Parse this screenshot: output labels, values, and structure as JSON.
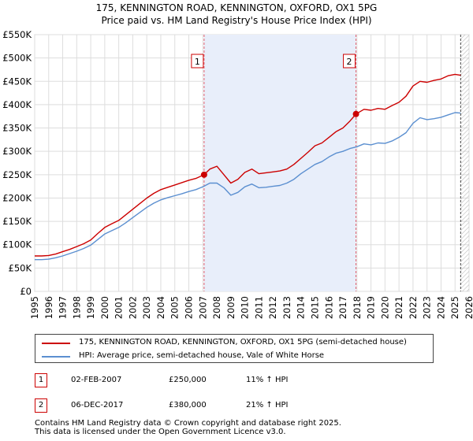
{
  "chart_data": {
    "type": "line",
    "title": "175, KENNINGTON ROAD, KENNINGTON, OXFORD, OX1 5PG",
    "subtitle": "Price paid vs. HM Land Registry's House Price Index (HPI)",
    "xlim": [
      1995,
      2026
    ],
    "ylim": [
      0,
      550000
    ],
    "x_ticks": [
      "1995",
      "1996",
      "1997",
      "1998",
      "1999",
      "2000",
      "2001",
      "2002",
      "2003",
      "2004",
      "2005",
      "2006",
      "2007",
      "2008",
      "2009",
      "2010",
      "2011",
      "2012",
      "2013",
      "2014",
      "2015",
      "2016",
      "2017",
      "2018",
      "2019",
      "2020",
      "2021",
      "2022",
      "2023",
      "2024",
      "2025",
      "2026"
    ],
    "y_ticks": [
      {
        "value": 0,
        "label": "£0"
      },
      {
        "value": 50000,
        "label": "£50K"
      },
      {
        "value": 100000,
        "label": "£100K"
      },
      {
        "value": 150000,
        "label": "£150K"
      },
      {
        "value": 200000,
        "label": "£200K"
      },
      {
        "value": 250000,
        "label": "£250K"
      },
      {
        "value": 300000,
        "label": "£300K"
      },
      {
        "value": 350000,
        "label": "£350K"
      },
      {
        "value": 400000,
        "label": "£400K"
      },
      {
        "value": 450000,
        "label": "£450K"
      },
      {
        "value": 500000,
        "label": "£500K"
      },
      {
        "value": 550000,
        "label": "£550K"
      }
    ],
    "grid": true,
    "series": [
      {
        "name": "175, KENNINGTON ROAD, KENNINGTON, OXFORD, OX1 5PG (semi-detached house)",
        "color": "#cc0000",
        "x": [
          1995,
          1995.5,
          1996,
          1996.5,
          1997,
          1997.5,
          1998,
          1998.5,
          1999,
          1999.5,
          2000,
          2000.5,
          2001,
          2001.5,
          2002,
          2002.5,
          2003,
          2003.5,
          2004,
          2004.5,
          2005,
          2005.5,
          2006,
          2006.5,
          2007.09,
          2007.5,
          2008,
          2008.5,
          2009,
          2009.5,
          2010,
          2010.5,
          2011,
          2011.5,
          2012,
          2012.5,
          2013,
          2013.5,
          2014,
          2014.5,
          2015,
          2015.5,
          2016,
          2016.5,
          2017,
          2017.5,
          2017.93,
          2018.5,
          2019,
          2019.5,
          2020,
          2020.5,
          2021,
          2021.5,
          2022,
          2022.5,
          2023,
          2023.5,
          2024,
          2024.5,
          2025,
          2025.4
        ],
        "y": [
          76000,
          76000,
          77000,
          80000,
          85000,
          90000,
          96000,
          102000,
          110000,
          124000,
          137000,
          145000,
          152000,
          164000,
          176000,
          188000,
          200000,
          210000,
          218000,
          223000,
          228000,
          233000,
          238000,
          242000,
          250000,
          262000,
          268000,
          250000,
          232000,
          240000,
          255000,
          262000,
          252000,
          254000,
          256000,
          258000,
          262000,
          272000,
          285000,
          298000,
          312000,
          318000,
          330000,
          342000,
          350000,
          365000,
          380000,
          390000,
          388000,
          392000,
          390000,
          398000,
          405000,
          418000,
          440000,
          450000,
          448000,
          452000,
          455000,
          462000,
          465000,
          463000
        ]
      },
      {
        "name": "HPI: Average price, semi-detached house, Vale of White Horse",
        "color": "#5b8fd0",
        "x": [
          1995,
          1995.5,
          1996,
          1996.5,
          1997,
          1997.5,
          1998,
          1998.5,
          1999,
          1999.5,
          2000,
          2000.5,
          2001,
          2001.5,
          2002,
          2002.5,
          2003,
          2003.5,
          2004,
          2004.5,
          2005,
          2005.5,
          2006,
          2006.5,
          2007,
          2007.5,
          2008,
          2008.5,
          2009,
          2009.5,
          2010,
          2010.5,
          2011,
          2011.5,
          2012,
          2012.5,
          2013,
          2013.5,
          2014,
          2014.5,
          2015,
          2015.5,
          2016,
          2016.5,
          2017,
          2017.5,
          2018,
          2018.5,
          2019,
          2019.5,
          2020,
          2020.5,
          2021,
          2021.5,
          2022,
          2022.5,
          2023,
          2023.5,
          2024,
          2024.5,
          2025,
          2025.4
        ],
        "y": [
          68000,
          68000,
          69000,
          72000,
          76000,
          81000,
          86000,
          92000,
          99000,
          111000,
          123000,
          130000,
          137000,
          147000,
          158000,
          169000,
          180000,
          189000,
          196000,
          201000,
          205000,
          209000,
          214000,
          218000,
          224000,
          232000,
          232000,
          222000,
          206000,
          212000,
          224000,
          230000,
          222000,
          223000,
          225000,
          227000,
          232000,
          240000,
          252000,
          262000,
          272000,
          278000,
          288000,
          296000,
          300000,
          306000,
          310000,
          316000,
          314000,
          318000,
          317000,
          322000,
          330000,
          340000,
          360000,
          372000,
          368000,
          370000,
          373000,
          378000,
          383000,
          382000
        ]
      }
    ],
    "annotations": [
      {
        "label": "1",
        "x": 2007.09
      },
      {
        "label": "2",
        "x": 2017.93
      }
    ],
    "shaded_range": [
      2007.09,
      2017.93
    ],
    "sale_points": [
      {
        "x": 2007.09,
        "y": 250000
      },
      {
        "x": 2017.93,
        "y": 380000
      }
    ],
    "data_end_x": 2025.4
  },
  "legend": {
    "items": [
      {
        "label": "175, KENNINGTON ROAD, KENNINGTON, OXFORD, OX1 5PG (semi-detached house)",
        "color": "#cc0000"
      },
      {
        "label": "HPI: Average price, semi-detached house, Vale of White Horse",
        "color": "#5b8fd0"
      }
    ]
  },
  "sales": [
    {
      "num": "1",
      "date": "02-FEB-2007",
      "price": "£250,000",
      "hpi": "11% ↑ HPI"
    },
    {
      "num": "2",
      "date": "06-DEC-2017",
      "price": "£380,000",
      "hpi": "21% ↑ HPI"
    }
  ],
  "footer": {
    "line1": "Contains HM Land Registry data © Crown copyright and database right 2025.",
    "line2": "This data is licensed under the Open Government Licence v3.0."
  }
}
